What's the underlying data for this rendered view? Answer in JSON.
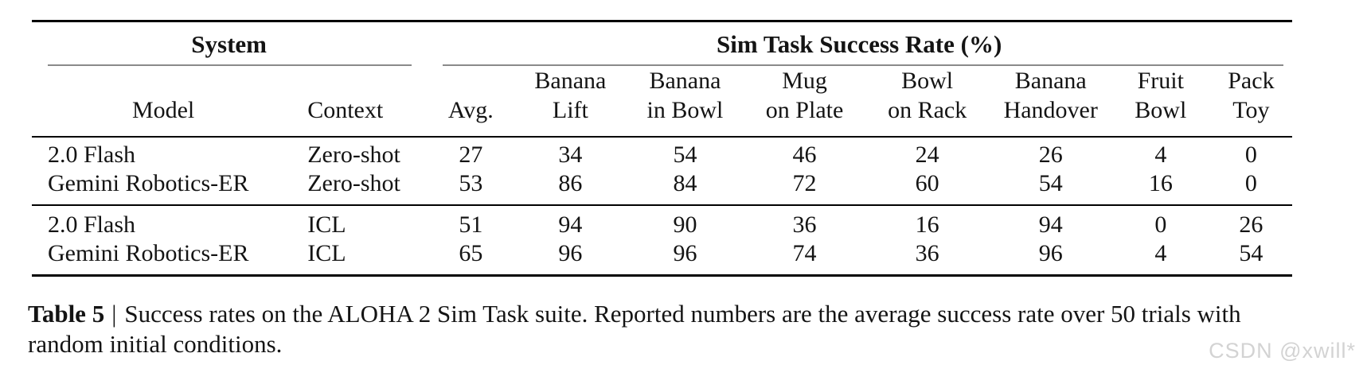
{
  "page": {
    "background": "#ffffff",
    "text_color": "#141414",
    "thick_rule_color": "#000000",
    "thin_rule_color": "#8a8a8a",
    "watermark_color": "#d3d3d3"
  },
  "table": {
    "group_headers": [
      {
        "label": "System",
        "colspan": 2
      },
      {
        "label": "Sim Task Success Rate (%)",
        "colspan": 8
      }
    ],
    "columns": [
      {
        "id": "model",
        "lines": [
          "Model"
        ]
      },
      {
        "id": "context",
        "lines": [
          "Context"
        ]
      },
      {
        "id": "avg",
        "lines": [
          "Avg."
        ]
      },
      {
        "id": "banana-lift",
        "lines": [
          "Banana",
          "Lift"
        ]
      },
      {
        "id": "banana-in-bowl",
        "lines": [
          "Banana",
          "in Bowl"
        ]
      },
      {
        "id": "mug-on-plate",
        "lines": [
          "Mug",
          "on Plate"
        ]
      },
      {
        "id": "bowl-on-rack",
        "lines": [
          "Bowl",
          "on Rack"
        ]
      },
      {
        "id": "banana-handover",
        "lines": [
          "Banana",
          "Handover"
        ]
      },
      {
        "id": "fruit-bowl",
        "lines": [
          "Fruit",
          "Bowl"
        ]
      },
      {
        "id": "pack-toy",
        "lines": [
          "Pack",
          "Toy"
        ]
      }
    ],
    "row_groups": [
      {
        "rows": [
          {
            "model": "2.0 Flash",
            "context": "Zero-shot",
            "values": [
              27,
              34,
              54,
              46,
              24,
              26,
              4,
              0
            ]
          },
          {
            "model": "Gemini Robotics-ER",
            "context": "Zero-shot",
            "values": [
              53,
              86,
              84,
              72,
              60,
              54,
              16,
              0
            ]
          }
        ]
      },
      {
        "rows": [
          {
            "model": "2.0 Flash",
            "context": "ICL",
            "values": [
              51,
              94,
              90,
              36,
              16,
              94,
              0,
              26
            ]
          },
          {
            "model": "Gemini Robotics-ER",
            "context": "ICL",
            "values": [
              65,
              96,
              96,
              74,
              36,
              96,
              4,
              54
            ]
          }
        ]
      }
    ]
  },
  "caption": {
    "label": "Table 5",
    "separator": "|",
    "text": "Success rates on the ALOHA 2 Sim Task suite. Reported numbers are the average success rate over 50 trials with random initial conditions."
  },
  "watermark": "CSDN @xwill*"
}
